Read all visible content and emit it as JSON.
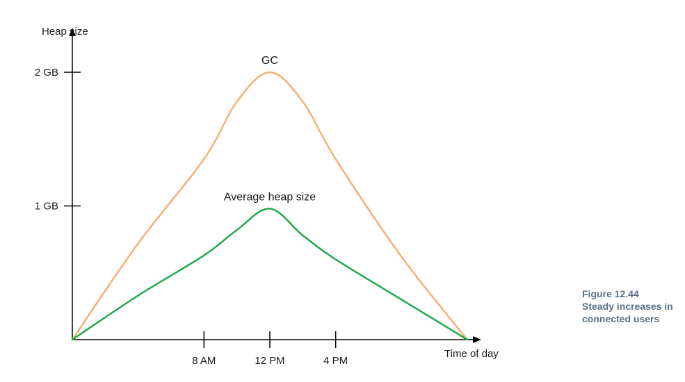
{
  "chart_data": {
    "type": "line",
    "ylabel": "Heap size",
    "xlabel": "Time of day",
    "y_ticks": [
      {
        "value": 1,
        "label": "1 GB"
      },
      {
        "value": 2,
        "label": "2 GB"
      }
    ],
    "x_ticks": [
      {
        "value": 8,
        "label": "8 AM"
      },
      {
        "value": 12,
        "label": "12 PM"
      },
      {
        "value": 16,
        "label": "4 PM"
      }
    ],
    "xlim": [
      0,
      24
    ],
    "ylim": [
      0,
      2
    ],
    "series": [
      {
        "name": "GC",
        "color": "#f2b170",
        "x": [
          0,
          4,
          8,
          10,
          12,
          14,
          16,
          20,
          24
        ],
        "y": [
          0,
          0.72,
          1.35,
          1.78,
          2.0,
          1.78,
          1.35,
          0.62,
          0
        ]
      },
      {
        "name": "Average heap size",
        "color": "#1fa84a",
        "x": [
          0,
          4,
          8,
          10,
          12,
          14,
          16,
          20,
          24
        ],
        "y": [
          0,
          0.33,
          0.63,
          0.82,
          0.98,
          0.78,
          0.6,
          0.3,
          0
        ]
      }
    ]
  },
  "caption": {
    "line1": "Figure 12.44",
    "line2": "Steady increases in",
    "line3": "connected users"
  }
}
